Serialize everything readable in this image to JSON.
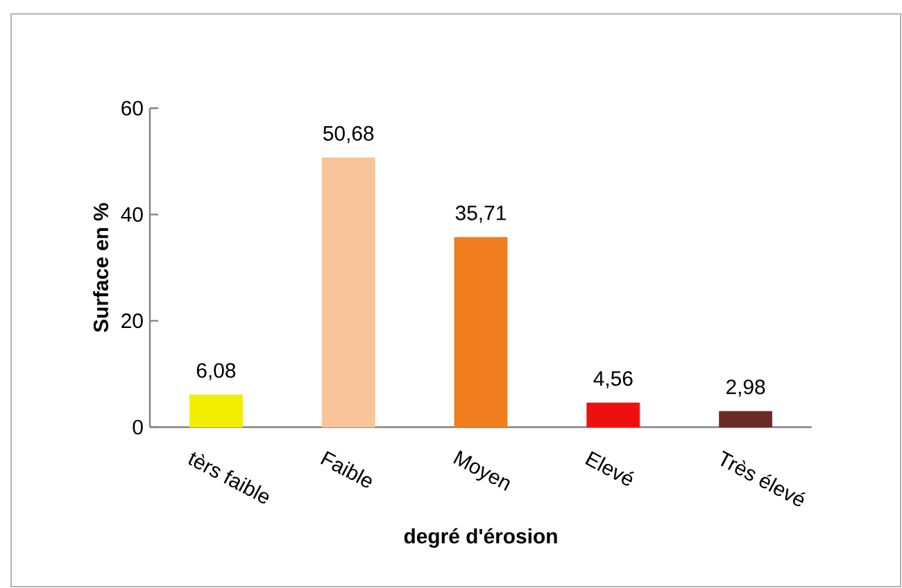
{
  "chart_data": {
    "type": "bar",
    "xlabel": "degré d'érosion",
    "ylabel": "Surface en %",
    "categories": [
      "tèrs faible",
      "Faible",
      "Moyen",
      "Elevé",
      "Très élevé"
    ],
    "values": [
      6.08,
      50.68,
      35.71,
      4.56,
      2.98
    ],
    "value_labels": [
      "6,08",
      "50,68",
      "35,71",
      "4,56",
      "2,98"
    ],
    "colors": [
      "#f2ee00",
      "#f8c49a",
      "#f07d1e",
      "#ee1010",
      "#6b2a26"
    ],
    "ylim": [
      0,
      60
    ],
    "yticks": [
      0,
      20,
      40,
      60
    ]
  }
}
